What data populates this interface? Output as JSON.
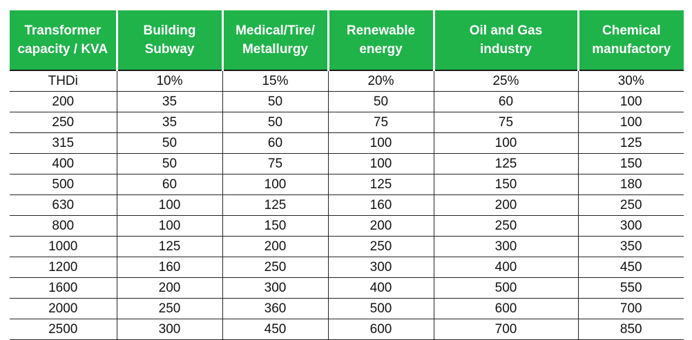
{
  "table": {
    "headers": [
      [
        "Transformer",
        "capacity / KVA"
      ],
      [
        "Building",
        "Subway"
      ],
      [
        "Medical/Tire/",
        "Metallurgy"
      ],
      [
        "Renewable",
        "energy"
      ],
      [
        "Oil and Gas",
        "industry"
      ],
      [
        "Chemical",
        "manufactory"
      ]
    ],
    "rows": [
      [
        "THDi",
        "10%",
        "15%",
        "20%",
        "25%",
        "30%"
      ],
      [
        "200",
        "35",
        "50",
        "50",
        "60",
        "100"
      ],
      [
        "250",
        "35",
        "50",
        "75",
        "75",
        "100"
      ],
      [
        "315",
        "50",
        "60",
        "100",
        "100",
        "125"
      ],
      [
        "400",
        "50",
        "75",
        "100",
        "125",
        "150"
      ],
      [
        "500",
        "60",
        "100",
        "125",
        "150",
        "180"
      ],
      [
        "630",
        "100",
        "125",
        "160",
        "200",
        "250"
      ],
      [
        "800",
        "100",
        "150",
        "200",
        "250",
        "300"
      ],
      [
        "1000",
        "125",
        "200",
        "250",
        "300",
        "350"
      ],
      [
        "1200",
        "160",
        "250",
        "300",
        "400",
        "450"
      ],
      [
        "1600",
        "200",
        "300",
        "400",
        "500",
        "550"
      ],
      [
        "2000",
        "250",
        "360",
        "500",
        "600",
        "700"
      ],
      [
        "2500",
        "300",
        "450",
        "600",
        "700",
        "850"
      ]
    ]
  },
  "colors": {
    "header_bg": "#1fb34a",
    "header_text": "#ffffff",
    "grid_line": "#222222"
  }
}
